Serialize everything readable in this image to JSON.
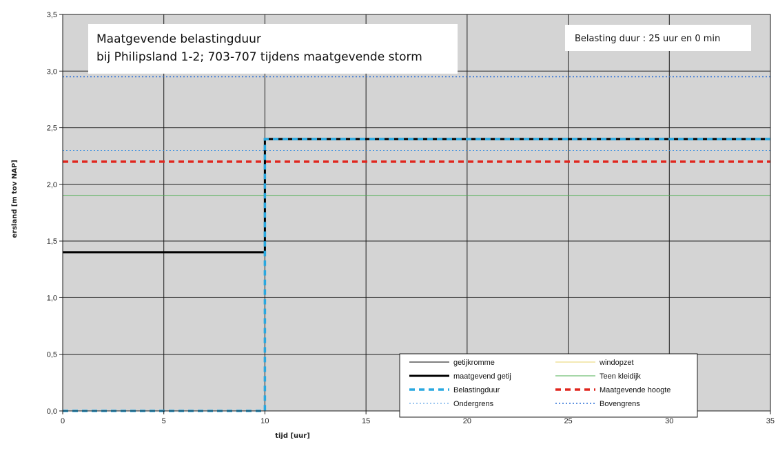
{
  "chart_data": {
    "type": "line",
    "title": "Maatgevende belastingduur",
    "subtitle": "bij Philipsland 1-2; 703-707 tijdens maatgevende storm",
    "annotation": "Belasting duur : 25 uur en 0 min",
    "xlabel": "tijd [uur]",
    "ylabel": "ersland [m tov NAP]",
    "xlim": [
      0,
      35
    ],
    "ylim": [
      0,
      3.5
    ],
    "xticks": [
      "0",
      "5",
      "10",
      "15",
      "20",
      "25",
      "30",
      "35"
    ],
    "yticks": [
      "0,0",
      "0,5",
      "1,0",
      "1,5",
      "2,0",
      "2,5",
      "3,0",
      "3,5"
    ],
    "grid": true,
    "legend_position": "bottom-right",
    "series": [
      {
        "name": "getijkromme",
        "color": "#000000",
        "style": "solid-thin",
        "x": [
          0,
          35
        ],
        "y": [
          0,
          0
        ]
      },
      {
        "name": "windopzet",
        "color": "#e8d36a",
        "style": "solid-thin",
        "x": [],
        "y": []
      },
      {
        "name": "maatgevend getij",
        "color": "#000000",
        "style": "solid-thick",
        "x": [
          0,
          10,
          10,
          35
        ],
        "y": [
          1.4,
          1.4,
          2.4,
          2.4
        ]
      },
      {
        "name": "Teen kleidijk",
        "color": "#4caf50",
        "style": "solid-thin",
        "x": [
          0,
          35
        ],
        "y": [
          1.9,
          1.9
        ]
      },
      {
        "name": "Belastingduur",
        "color": "#29a8e0",
        "style": "dashed-thick",
        "x": [
          0,
          10,
          10,
          35
        ],
        "y": [
          0,
          0,
          2.4,
          2.4
        ]
      },
      {
        "name": "Maatgevende hoogte",
        "color": "#e0261e",
        "style": "dashed-thick",
        "x": [
          0,
          35
        ],
        "y": [
          2.2,
          2.2
        ]
      },
      {
        "name": "Ondergrens",
        "color": "#3b8fe0",
        "style": "dotted-thin",
        "x": [
          0,
          35
        ],
        "y": [
          2.3,
          2.3
        ]
      },
      {
        "name": "Bovengrens",
        "color": "#2a6fd6",
        "style": "dotted-medium",
        "x": [
          0,
          35
        ],
        "y": [
          2.95,
          2.95
        ]
      }
    ]
  }
}
